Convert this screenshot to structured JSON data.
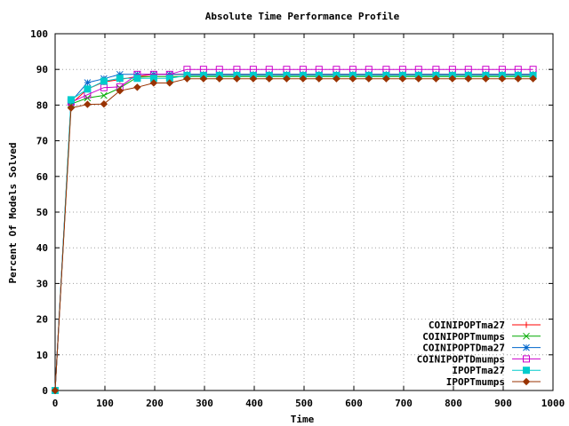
{
  "chart_data": {
    "type": "line",
    "title": "Absolute Time Performance Profile",
    "xlabel": "Time",
    "ylabel": "Percent Of Models Solved",
    "xlim": [
      0,
      1000
    ],
    "ylim": [
      0,
      100
    ],
    "xticks": [
      0,
      100,
      200,
      300,
      400,
      500,
      600,
      700,
      800,
      900,
      1000
    ],
    "yticks": [
      0,
      10,
      20,
      30,
      40,
      50,
      60,
      70,
      80,
      90,
      100
    ],
    "grid": true,
    "legend_position": "bottom-right",
    "series": [
      {
        "name": "COINIPOPTma27",
        "color": "#ff0000",
        "marker": "plus",
        "x": [
          0,
          32,
          65,
          98,
          130,
          165,
          198,
          230,
          265,
          298,
          330,
          365,
          398,
          430,
          465,
          498,
          530,
          565,
          598,
          630,
          665,
          698,
          730,
          765,
          798,
          830,
          865,
          898,
          930,
          960
        ],
        "y": [
          0,
          80.3,
          84.5,
          86.5,
          87.2,
          88.0,
          88.6,
          88.6,
          88.6,
          88.6,
          88.6,
          88.6,
          88.6,
          88.6,
          88.6,
          88.6,
          88.6,
          88.6,
          88.6,
          88.6,
          88.6,
          88.6,
          88.6,
          88.6,
          88.6,
          88.6,
          88.6,
          88.6,
          88.6,
          88.6
        ]
      },
      {
        "name": "COINIPOPTmumps",
        "color": "#00aa00",
        "marker": "cross",
        "x": [
          0,
          32,
          65,
          98,
          130,
          165,
          198,
          230,
          265,
          298,
          330,
          365,
          398,
          430,
          465,
          498,
          530,
          565,
          598,
          630,
          665,
          698,
          730,
          765,
          798,
          830,
          865,
          898,
          930,
          960
        ],
        "y": [
          0,
          80.3,
          82.0,
          82.7,
          84.8,
          87.8,
          88.0,
          88.0,
          88.0,
          88.0,
          88.0,
          88.0,
          88.0,
          88.0,
          88.0,
          88.0,
          88.0,
          88.0,
          88.0,
          88.0,
          88.0,
          88.0,
          88.0,
          88.0,
          88.0,
          88.0,
          88.0,
          88.0,
          88.0,
          88.0
        ]
      },
      {
        "name": "COINIPOPTDma27",
        "color": "#0066cc",
        "marker": "star",
        "x": [
          0,
          32,
          65,
          98,
          130,
          165,
          198,
          230,
          265,
          298,
          330,
          365,
          398,
          430,
          465,
          498,
          530,
          565,
          598,
          630,
          665,
          698,
          730,
          765,
          798,
          830,
          865,
          898,
          930,
          960
        ],
        "y": [
          0,
          81.0,
          86.3,
          87.4,
          88.6,
          88.6,
          88.6,
          88.6,
          88.6,
          88.6,
          88.6,
          88.6,
          88.6,
          88.6,
          88.6,
          88.6,
          88.6,
          88.6,
          88.6,
          88.6,
          88.6,
          88.6,
          88.6,
          88.6,
          88.6,
          88.6,
          88.6,
          88.6,
          88.6,
          88.6
        ]
      },
      {
        "name": "COINIPOPTDmumps",
        "color": "#cc00cc",
        "marker": "square",
        "x": [
          0,
          32,
          65,
          98,
          130,
          165,
          198,
          230,
          265,
          298,
          330,
          365,
          398,
          430,
          465,
          498,
          530,
          565,
          598,
          630,
          665,
          698,
          730,
          765,
          798,
          830,
          865,
          898,
          930,
          960
        ],
        "y": [
          0,
          80.8,
          82.9,
          84.9,
          85.1,
          88.6,
          88.6,
          88.6,
          90.0,
          90.0,
          90.0,
          90.0,
          90.0,
          90.0,
          90.0,
          90.0,
          90.0,
          90.0,
          90.0,
          90.0,
          90.0,
          90.0,
          90.0,
          90.0,
          90.0,
          90.0,
          90.0,
          90.0,
          90.0,
          90.0
        ]
      },
      {
        "name": "IPOPTma27",
        "color": "#00cccc",
        "marker": "filled-square",
        "x": [
          0,
          32,
          65,
          98,
          130,
          165,
          198,
          230,
          265,
          298,
          330,
          365,
          398,
          430,
          465,
          498,
          530,
          565,
          598,
          630,
          665,
          698,
          730,
          765,
          798,
          830,
          865,
          898,
          930,
          960
        ],
        "y": [
          0,
          81.5,
          84.5,
          86.7,
          87.5,
          87.5,
          87.5,
          87.5,
          88.3,
          88.3,
          88.3,
          88.3,
          88.3,
          88.3,
          88.3,
          88.3,
          88.3,
          88.3,
          88.3,
          88.3,
          88.3,
          88.3,
          88.3,
          88.3,
          88.3,
          88.3,
          88.3,
          88.3,
          88.3,
          88.3
        ]
      },
      {
        "name": "IPOPTmumps",
        "color": "#993300",
        "marker": "filled-diamond",
        "x": [
          0,
          32,
          65,
          98,
          130,
          165,
          198,
          230,
          265,
          298,
          330,
          365,
          398,
          430,
          465,
          498,
          530,
          565,
          598,
          630,
          665,
          698,
          730,
          765,
          798,
          830,
          865,
          898,
          930,
          960
        ],
        "y": [
          0,
          79.2,
          80.2,
          80.3,
          84.0,
          85.0,
          86.2,
          86.2,
          87.4,
          87.4,
          87.4,
          87.4,
          87.4,
          87.4,
          87.4,
          87.4,
          87.4,
          87.4,
          87.4,
          87.4,
          87.4,
          87.4,
          87.4,
          87.4,
          87.4,
          87.4,
          87.4,
          87.4,
          87.4,
          87.4
        ]
      }
    ]
  }
}
